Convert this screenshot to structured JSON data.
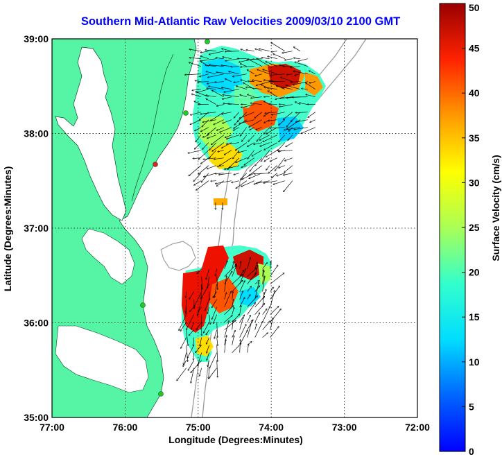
{
  "title": "Southern Mid-Atlantic Raw Velocities 2009/03/10 2100 GMT",
  "chart_data": {
    "type": "heatmap",
    "xlabel": "Longitude (Degrees:Minutes)",
    "ylabel": "Latitude (Degrees:Minutes)",
    "x_ticks": [
      "77:00",
      "76:00",
      "75:00",
      "74:00",
      "73:00",
      "72:00"
    ],
    "y_ticks": [
      "39:00",
      "38:00",
      "37:00",
      "36:00",
      "35:00"
    ],
    "xlim": [
      -77,
      -72
    ],
    "ylim": [
      35,
      39
    ],
    "grid": true,
    "colorbar": {
      "label": "Surface Velocity (cm/s)",
      "range": [
        0,
        50
      ],
      "ticks": [
        "0",
        "5",
        "10",
        "15",
        "20",
        "25",
        "30",
        "35",
        "40",
        "45",
        "50"
      ]
    },
    "regions": [
      {
        "name": "northern patch",
        "lon_range": [
          -75.0,
          -73.3
        ],
        "lat_range": [
          37.5,
          38.9
        ],
        "speed_range_cm_s": [
          8,
          50
        ]
      },
      {
        "name": "southern patch",
        "lon_range": [
          -75.2,
          -74.0
        ],
        "lat_range": [
          35.5,
          36.6
        ],
        "speed_range_cm_s": [
          10,
          50
        ]
      },
      {
        "name": "small patch",
        "lon_range": [
          -74.8,
          -74.6
        ],
        "lat_range": [
          37.2,
          37.3
        ],
        "speed_range_cm_s": [
          32,
          36
        ]
      }
    ],
    "colors": {
      "land": "#55f5a5",
      "water": "#ffffff",
      "bathymetry": "#9a9a9a",
      "stations": "#22cc22",
      "station_alert": "#dd2222"
    }
  }
}
